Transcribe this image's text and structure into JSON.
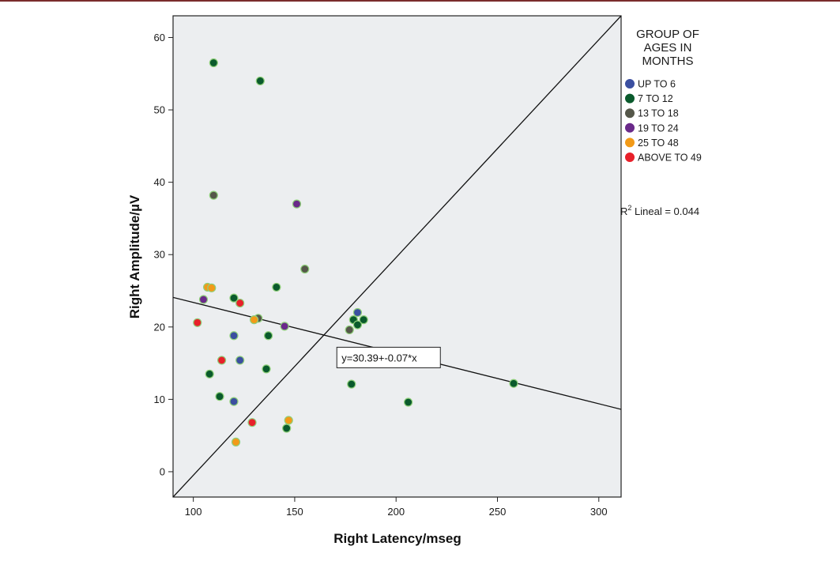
{
  "chart_data": {
    "type": "scatter",
    "title": "",
    "xlabel": "Right Latency/mseg",
    "ylabel": "Right Amplitude/µV",
    "xlim": [
      90,
      311
    ],
    "ylim": [
      -3.5,
      63
    ],
    "xticks": [
      100,
      150,
      200,
      250,
      300
    ],
    "yticks": [
      0,
      10,
      20,
      30,
      40,
      50,
      60
    ],
    "grid": false,
    "legend": {
      "position": "right",
      "title_lines": [
        "GROUP OF",
        "AGES IN",
        "MONTHS"
      ]
    },
    "series": [
      {
        "name": "UP TO 6",
        "color": "#3b4fa0",
        "points": [
          [
            181,
            22
          ],
          [
            120,
            18.8
          ],
          [
            123,
            15.4
          ],
          [
            120,
            9.7
          ]
        ]
      },
      {
        "name": "7 TO 12",
        "color": "#0a5a2c",
        "points": [
          [
            110,
            56.5
          ],
          [
            133,
            54
          ],
          [
            141,
            25.5
          ],
          [
            120,
            24
          ],
          [
            137,
            18.8
          ],
          [
            136,
            14.2
          ],
          [
            108,
            13.5
          ],
          [
            113,
            10.4
          ],
          [
            146,
            6
          ],
          [
            179,
            21
          ],
          [
            184,
            21
          ],
          [
            181,
            20.3
          ],
          [
            178,
            12.1
          ],
          [
            206,
            9.6
          ],
          [
            258,
            12.2
          ]
        ]
      },
      {
        "name": "13 TO 18",
        "color": "#55574a",
        "points": [
          [
            110,
            38.2
          ],
          [
            155,
            28
          ],
          [
            132,
            21.2
          ],
          [
            177,
            19.6
          ]
        ]
      },
      {
        "name": "19 TO 24",
        "color": "#6a2a8a",
        "points": [
          [
            151,
            37
          ],
          [
            105,
            23.8
          ],
          [
            145,
            20.1
          ]
        ]
      },
      {
        "name": "25 TO 48",
        "color": "#f29a18",
        "points": [
          [
            107,
            25.5
          ],
          [
            109,
            25.4
          ],
          [
            130,
            21
          ],
          [
            147,
            7.1
          ],
          [
            121,
            4.1
          ]
        ]
      },
      {
        "name": "ABOVE TO 49",
        "color": "#e8202a",
        "points": [
          [
            123,
            23.3
          ],
          [
            102,
            20.6
          ],
          [
            114,
            15.4
          ],
          [
            129,
            6.8
          ]
        ]
      }
    ],
    "reference_lines": [
      {
        "kind": "identity",
        "x1": 90,
        "y1": -3.5,
        "x2": 311,
        "y2": 63
      },
      {
        "kind": "fit",
        "intercept": 30.39,
        "slope": -0.07,
        "x1": 90,
        "x2": 311
      }
    ],
    "annotations": {
      "equation": "y=30.39+-0.07*x",
      "equation_at": [
        193,
        16
      ],
      "r2_prefix": "R",
      "r2_sup": "2",
      "r2_text": " Lineal = 0.044"
    }
  }
}
